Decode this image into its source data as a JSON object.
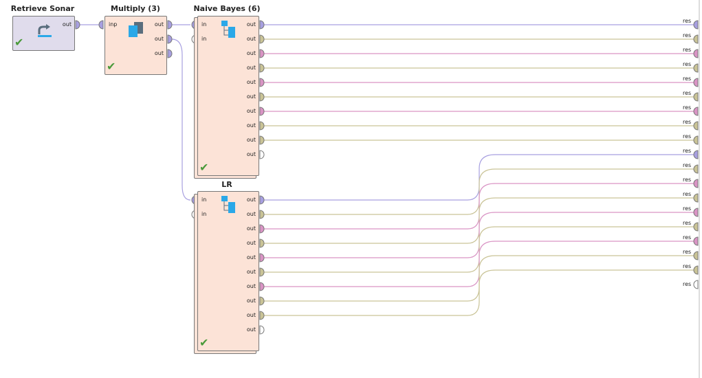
{
  "colors": {
    "example_set": "#a79fe0",
    "model": "#c9c396",
    "performance": "#d993c4",
    "empty": "#ffffff",
    "op_fill": "#fce3d7",
    "retrieve_fill": "#e0dcec"
  },
  "operators": {
    "retrieve": {
      "title": "Retrieve Sonar",
      "out": "out",
      "icon": "retrieve-icon"
    },
    "multiply": {
      "title": "Multiply (3)",
      "in": "inp",
      "outs": [
        "out",
        "out",
        "out"
      ],
      "icon": "multiply-icon"
    },
    "naive_bayes": {
      "title": "Naive Bayes (6)",
      "ins": [
        "in",
        "in"
      ],
      "outs": [
        "out",
        "out",
        "out",
        "out",
        "out",
        "out",
        "out",
        "out",
        "out",
        "out"
      ],
      "icon": "subprocess-icon"
    },
    "lr": {
      "title": "LR",
      "ins": [
        "in",
        "in"
      ],
      "outs": [
        "out",
        "out",
        "out",
        "out",
        "out",
        "out",
        "out",
        "out",
        "out",
        "out"
      ],
      "icon": "subprocess-icon"
    }
  },
  "nb_out_types": [
    "example_set",
    "model",
    "performance",
    "model",
    "performance",
    "model",
    "performance",
    "model",
    "model",
    "empty"
  ],
  "lr_out_types": [
    "example_set",
    "model",
    "performance",
    "model",
    "performance",
    "model",
    "performance",
    "model",
    "model",
    "empty"
  ],
  "results": {
    "label": "res",
    "types": [
      "example_set",
      "model",
      "performance",
      "model",
      "performance",
      "model",
      "performance",
      "model",
      "model",
      "example_set",
      "model",
      "performance",
      "model",
      "performance",
      "model",
      "performance",
      "model",
      "model",
      "empty"
    ]
  }
}
